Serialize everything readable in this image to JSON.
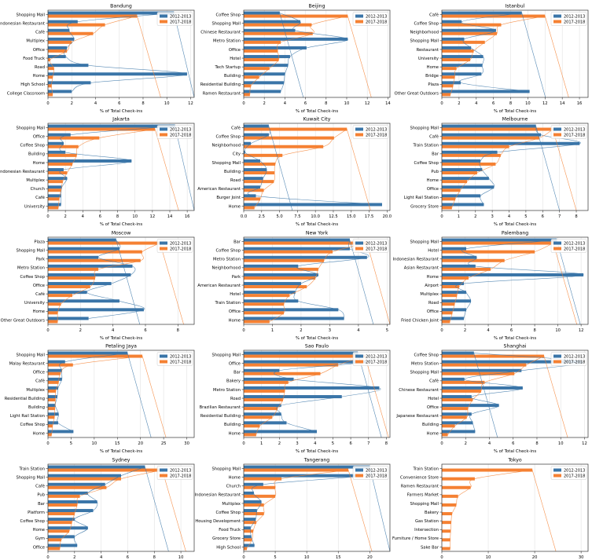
{
  "colors": {
    "series_2012": "#3a75a8",
    "series_2017": "#f58133",
    "grid": "#e2e2e2",
    "frame": "#333333"
  },
  "legend_labels": [
    "2012-2013",
    "2017-2018"
  ],
  "chart_data": [
    {
      "type": "bar",
      "title": "Bandung",
      "xlabel": "% of Total Check-ins",
      "xlim": [
        0,
        12.3
      ],
      "xticks": [
        "0",
        "2",
        "4",
        "6",
        "8",
        "10",
        "12"
      ],
      "xtick_values": [
        0,
        2,
        4,
        6,
        8,
        10,
        12
      ],
      "categories": [
        "College Classroom",
        "High School",
        "Home",
        "Road",
        "Food Truck",
        "Office",
        "Multiplex",
        "Café",
        "Indonesian Restaurant",
        "Shopping Mall"
      ],
      "series": [
        {
          "name": "2012-2013",
          "values": [
            2.0,
            3.6,
            11.7,
            3.4,
            1.5,
            1.6,
            2.2,
            1.8,
            2.5,
            10.6
          ]
        },
        {
          "name": "2017-2018",
          "values": [
            0.4,
            0.3,
            0.4,
            0.5,
            0.2,
            1.6,
            2.0,
            3.8,
            4.8,
            7.5
          ]
        }
      ]
    },
    {
      "type": "bar",
      "title": "Beijing",
      "xlabel": "% of Total Check-ins",
      "xlim": [
        0,
        14.2
      ],
      "xticks": [
        "0",
        "2",
        "4",
        "6",
        "8",
        "10",
        "12",
        "14"
      ],
      "xtick_values": [
        0,
        2,
        4,
        6,
        8,
        10,
        12,
        14
      ],
      "categories": [
        "Ramen Restaurant",
        "Residential Building",
        "Building",
        "Tech Startup",
        "Hotel",
        "Office",
        "Metro Station",
        "Chinese Restaurant",
        "Shopping Mall",
        "Coffee Shop"
      ],
      "series": [
        {
          "name": "2012-2013",
          "values": [
            3.6,
            3.9,
            4.0,
            4.3,
            4.5,
            6.1,
            10.1,
            5.0,
            5.5,
            3.5
          ]
        },
        {
          "name": "2017-2018",
          "values": [
            0.6,
            0.7,
            1.5,
            2.5,
            3.4,
            3.3,
            3.6,
            6.7,
            6.6,
            10.1
          ]
        }
      ]
    },
    {
      "type": "bar",
      "title": "Istanbul",
      "xlabel": "% of Total Check-ins",
      "xlim": [
        0,
        17
      ],
      "xticks": [
        "0",
        "2",
        "4",
        "6",
        "8",
        "10",
        "12",
        "14",
        "16"
      ],
      "xtick_values": [
        0,
        2,
        4,
        6,
        8,
        10,
        12,
        14,
        16
      ],
      "categories": [
        "Other Great Outdoors",
        "Plaza",
        "Bridge",
        "Home",
        "University",
        "Restaurant",
        "Shopping Mall",
        "Neighborhood",
        "Coffee Shop",
        "Café"
      ],
      "series": [
        {
          "name": "2012-2013",
          "values": [
            10.2,
            2.2,
            4.6,
            4.7,
            4.8,
            3.4,
            2.6,
            6.3,
            2.3,
            9.3
          ]
        },
        {
          "name": "2017-2018",
          "values": [
            1.0,
            1.3,
            1.5,
            1.7,
            3.3,
            3.7,
            5.0,
            6.4,
            6.9,
            12.0
          ]
        }
      ]
    },
    {
      "type": "bar",
      "title": "Jakarta",
      "xlabel": "% of Total Check-ins",
      "xlim": [
        0,
        16.8
      ],
      "xticks": [
        "0",
        "2",
        "4",
        "6",
        "8",
        "10",
        "12",
        "14",
        "16"
      ],
      "xtick_values": [
        0,
        2,
        4,
        6,
        8,
        10,
        12,
        14,
        16
      ],
      "categories": [
        "University",
        "Café",
        "Church",
        "Multiplex",
        "Indonesian Restaurant",
        "Home",
        "Building",
        "Coffee Shop",
        "Office",
        "Shopping Mall"
      ],
      "series": [
        {
          "name": "2012-2013",
          "values": [
            1.5,
            1.5,
            1.6,
            2.2,
            1.8,
            9.6,
            2.0,
            1.8,
            2.6,
            14.6
          ]
        },
        {
          "name": "2017-2018",
          "values": [
            1.2,
            1.3,
            1.5,
            1.7,
            2.2,
            2.8,
            3.3,
            3.5,
            5.9,
            12.3
          ]
        }
      ]
    },
    {
      "type": "bar",
      "title": "Kuwait City",
      "xlabel": "% of Total Check-ins",
      "xlim": [
        0,
        20.4
      ],
      "xticks": [
        "0.0",
        "2.5",
        "5.0",
        "7.5",
        "10.0",
        "12.5",
        "15.0",
        "17.5",
        "20.0"
      ],
      "xtick_values": [
        0,
        2.5,
        5,
        7.5,
        10,
        12.5,
        15,
        17.5,
        20
      ],
      "categories": [
        "Home",
        "Burger Joint",
        "American Restaurant",
        "Road",
        "Building",
        "Shopping Mall",
        "City",
        "Neighborhood",
        "Coffee Shop",
        "Café"
      ],
      "series": [
        {
          "name": "2012-2013",
          "values": [
            19.3,
            1.7,
            2.3,
            2.7,
            3.2,
            2.3,
            0.2,
            1.0,
            3.5,
            3.5
          ]
        },
        {
          "name": "2017-2018",
          "values": [
            1.5,
            2.3,
            2.8,
            4.2,
            4.3,
            4.4,
            5.4,
            11.1,
            12.6,
            14.4
          ]
        }
      ]
    },
    {
      "type": "bar",
      "title": "Melbourne",
      "xlabel": "% of Total Check-ins",
      "xlim": [
        0,
        8.7
      ],
      "xticks": [
        "0",
        "1",
        "2",
        "3",
        "4",
        "5",
        "6",
        "7",
        "8"
      ],
      "xtick_values": [
        0,
        1,
        2,
        3,
        4,
        5,
        6,
        7,
        8
      ],
      "categories": [
        "Grocery Store",
        "Light Rail Station",
        "Office",
        "Home",
        "Pub",
        "Coffee Shop",
        "Bar",
        "Train Station",
        "Café",
        "Shopping Mall"
      ],
      "series": [
        {
          "name": "2012-2013",
          "values": [
            2.5,
            2.3,
            3.1,
            2.8,
            2.4,
            2.3,
            3.3,
            8.2,
            5.9,
            5.6
          ]
        },
        {
          "name": "2017-2018",
          "values": [
            0.6,
            0.8,
            1.1,
            1.5,
            2.1,
            3.2,
            3.5,
            4.0,
            5.8,
            6.6
          ]
        }
      ]
    },
    {
      "type": "bar",
      "title": "Moscow",
      "xlabel": "% of Total Check-ins",
      "xlim": [
        0,
        9
      ],
      "xticks": [
        "0",
        "2",
        "4",
        "6",
        "8"
      ],
      "xtick_values": [
        0,
        2,
        4,
        6,
        8
      ],
      "categories": [
        "Other Great Outdoors",
        "Home",
        "University",
        "Café",
        "Office",
        "Coffee Shop",
        "Metro Station",
        "Park",
        "Shopping Mall",
        "Plaza"
      ],
      "series": [
        {
          "name": "2012-2013",
          "values": [
            2.5,
            5.9,
            4.4,
            2.4,
            3.9,
            5.1,
            5.2,
            3.1,
            4.4,
            4.2
          ]
        },
        {
          "name": "2017-2018",
          "values": [
            0.6,
            0.6,
            0.8,
            1.5,
            2.6,
            2.9,
            3.1,
            5.7,
            5.8,
            6.9
          ]
        }
      ]
    },
    {
      "type": "bar",
      "title": "New York",
      "xlabel": "% of Total Check-ins",
      "xlim": [
        0,
        5.1
      ],
      "xticks": [
        "0",
        "1",
        "2",
        "3",
        "4",
        "5"
      ],
      "xtick_values": [
        0,
        1,
        2,
        3,
        4,
        5
      ],
      "categories": [
        "Home",
        "Office",
        "Train Station",
        "Hotel",
        "American Restaurant",
        "Park",
        "Neighborhood",
        "Metro Station",
        "Coffee Shop",
        "Bar"
      ],
      "series": [
        {
          "name": "2012-2013",
          "values": [
            3.5,
            3.3,
            1.9,
            1.8,
            2.0,
            2.6,
            1.9,
            4.3,
            3.7,
            3.7
          ]
        },
        {
          "name": "2017-2018",
          "values": [
            0.9,
            1.4,
            1.4,
            1.6,
            2.2,
            2.5,
            2.6,
            2.8,
            3.1,
            4.3
          ]
        }
      ]
    },
    {
      "type": "bar",
      "title": "Palembang",
      "xlabel": "% of Total Check-ins",
      "xlim": [
        0,
        12.6
      ],
      "xticks": [
        "0",
        "2",
        "4",
        "6",
        "8",
        "10",
        "12"
      ],
      "xtick_values": [
        0,
        2,
        4,
        6,
        8,
        10,
        12
      ],
      "categories": [
        "Fried Chicken Joint",
        "Office",
        "Road",
        "Multiplex",
        "Airport",
        "Home",
        "Asian Restaurant",
        "Indonesian Restaurant",
        "Hotel",
        "Shopping Mall"
      ],
      "series": [
        {
          "name": "2012-2013",
          "values": [
            1.9,
            2.1,
            2.5,
            2.1,
            1.9,
            12.2,
            2.9,
            3.0,
            2.1,
            9.9
          ]
        },
        {
          "name": "2017-2018",
          "values": [
            0.7,
            0.9,
            1.1,
            1.3,
            1.5,
            2.3,
            4.2,
            5.4,
            8.0,
            9.6
          ]
        }
      ]
    },
    {
      "type": "bar",
      "title": "Petaling Jaya",
      "xlabel": "% of Total Check-ins",
      "xlim": [
        0,
        31.6
      ],
      "xticks": [
        "0",
        "5",
        "10",
        "15",
        "20",
        "25",
        "30"
      ],
      "xtick_values": [
        0,
        5,
        10,
        15,
        20,
        25,
        30
      ],
      "categories": [
        "Home",
        "Coffee Shop",
        "Light Rail Station",
        "Building",
        "Residential Building",
        "Multiplex",
        "Café",
        "Office",
        "Malay Restaurant",
        "Shopping Mall"
      ],
      "series": [
        {
          "name": "2012-2013",
          "values": [
            5.5,
            2.2,
            2.3,
            1.6,
            2.0,
            2.2,
            3.0,
            3.0,
            3.7,
            17.2
          ]
        },
        {
          "name": "2017-2018",
          "values": [
            0.8,
            1.0,
            1.4,
            1.5,
            1.6,
            1.7,
            2.3,
            2.7,
            5.4,
            20.4
          ]
        }
      ]
    },
    {
      "type": "bar",
      "title": "Sao Paulo",
      "xlabel": "% of Total Check-ins",
      "xlim": [
        0,
        8.2
      ],
      "xticks": [
        "0",
        "1",
        "2",
        "3",
        "4",
        "5",
        "6",
        "7",
        "8"
      ],
      "xtick_values": [
        0,
        1,
        2,
        3,
        4,
        5,
        6,
        7,
        8
      ],
      "categories": [
        "Home",
        "Building",
        "Residential Building",
        "Brazilian Restaurant",
        "Road",
        "Metro Station",
        "Bakery",
        "Bar",
        "Office",
        "Shopping Mall"
      ],
      "series": [
        {
          "name": "2012-2013",
          "values": [
            4.1,
            2.4,
            2.1,
            2.1,
            5.5,
            7.6,
            2.8,
            2.0,
            6.9,
            6.4
          ]
        },
        {
          "name": "2017-2018",
          "values": [
            0.7,
            0.9,
            1.6,
            1.9,
            2.2,
            2.3,
            2.5,
            4.3,
            5.3,
            6.8
          ]
        }
      ]
    },
    {
      "type": "bar",
      "title": "Shanghai",
      "xlabel": "% of Total Check-ins",
      "xlim": [
        0,
        12.3
      ],
      "xticks": [
        "0",
        "2",
        "4",
        "6",
        "8",
        "10",
        "12"
      ],
      "xtick_values": [
        0,
        2,
        4,
        6,
        8,
        10,
        12
      ],
      "categories": [
        "Home",
        "Building",
        "Japanese Restaurant",
        "Office",
        "Hotel",
        "Chinese Restaurant",
        "Café",
        "Shopping Mall",
        "Metro Station",
        "Coffee Shop"
      ],
      "series": [
        {
          "name": "2012-2013",
          "values": [
            2.8,
            2.6,
            2.5,
            4.8,
            2.5,
            6.8,
            1.9,
            6.7,
            11.8,
            2.7
          ]
        },
        {
          "name": "2017-2018",
          "values": [
            0.5,
            1.1,
            2.1,
            2.2,
            2.6,
            3.3,
            3.6,
            6.1,
            7.1,
            8.6
          ]
        }
      ]
    },
    {
      "type": "bar",
      "title": "Sydney",
      "xlabel": "% of Total Check-ins",
      "xlim": [
        0,
        11
      ],
      "xticks": [
        "0",
        "2",
        "4",
        "6",
        "8",
        "10"
      ],
      "xtick_values": [
        0,
        2,
        4,
        6,
        8,
        10
      ],
      "categories": [
        "Office",
        "Gym",
        "Home",
        "Coffee Shop",
        "Platform",
        "Bar",
        "Pub",
        "Café",
        "Shopping Mall",
        "Train Station"
      ],
      "series": [
        {
          "name": "2012-2013",
          "values": [
            2.2,
            2.0,
            3.0,
            2.0,
            3.4,
            3.7,
            3.0,
            4.3,
            5.5,
            7.3
          ]
        },
        {
          "name": "2017-2018",
          "values": [
            0.9,
            1.0,
            1.6,
            1.8,
            2.0,
            2.2,
            2.4,
            4.4,
            5.5,
            8.6
          ]
        }
      ]
    },
    {
      "type": "bar",
      "title": "Tangerang",
      "xlabel": "% of Total Check-ins",
      "xlim": [
        0,
        23.2
      ],
      "xticks": [
        "0",
        "5",
        "10",
        "15",
        "20"
      ],
      "xtick_values": [
        0,
        5,
        10,
        15,
        20
      ],
      "categories": [
        "High School",
        "Grocery Store",
        "Food Truck",
        "Housing Development",
        "Coffee Shop",
        "Multiplex",
        "Indonesian Restaurant",
        "Church",
        "Home",
        "Shopping Mall"
      ],
      "series": [
        {
          "name": "2012-2013",
          "values": [
            1.7,
            1.2,
            1.1,
            1.9,
            2.1,
            2.8,
            1.6,
            3.1,
            18.7,
            20.0
          ]
        },
        {
          "name": "2017-2018",
          "values": [
            0.5,
            1.3,
            1.5,
            2.0,
            3.2,
            3.2,
            5.0,
            5.0,
            6.0,
            16.6
          ]
        }
      ]
    },
    {
      "type": "bar",
      "title": "Tokyo",
      "xlabel": "% of Total Check-ins",
      "xlim": [
        0,
        31.5
      ],
      "xticks": [
        "0",
        "10",
        "20",
        "30"
      ],
      "xtick_values": [
        0,
        10,
        20,
        30
      ],
      "categories": [
        "Sake Bar",
        "Furniture / Home Store",
        "Intersection",
        "Gas Station",
        "Bakery",
        "Shopping Mall",
        "Farmers Market",
        "Ramen Restaurant",
        "Convenience Store",
        "Train Station"
      ],
      "series": [
        {
          "name": "2012-2013",
          "values": [
            0,
            0,
            0,
            0,
            0,
            0,
            0,
            0,
            0,
            0
          ]
        },
        {
          "name": "2017-2018",
          "values": [
            1.8,
            1.8,
            1.9,
            2.0,
            2.2,
            3.1,
            3.5,
            6.2,
            7.1,
            19.5
          ]
        }
      ]
    }
  ]
}
